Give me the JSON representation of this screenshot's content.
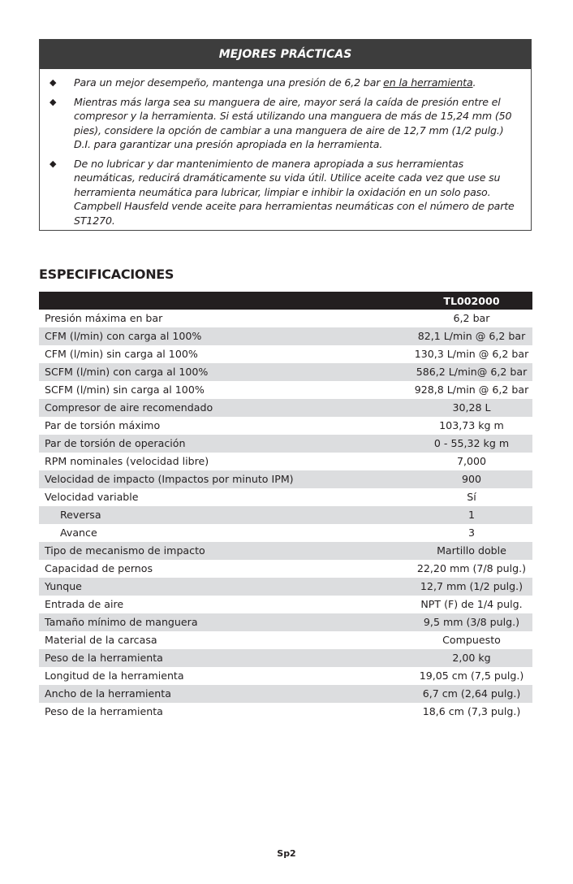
{
  "best_practices": {
    "title": "MEJORES PRÁCTICAS",
    "items": [
      {
        "text": "Para un mejor desempeño, mantenga una presión de 6,2 bar ",
        "underlined": "en la herramienta",
        "after": "."
      },
      {
        "text": "Mientras más larga sea su manguera de aire, mayor será la caída de presión entre el compresor y la herramienta. Si está utilizando una manguera de más de 15,24 mm (50 pies), considere la opción de cambiar a una manguera de aire de 12,7 mm (1/2 pulg.) D.I. para garantizar una presión apropiada en la herramienta."
      },
      {
        "text": "De no lubricar y dar mantenimiento de manera apropiada a sus herramientas neumáticas, reducirá dramáticamente su vida útil. Utilice aceite cada vez que use su herramienta neumática para lubricar, limpiar e inhibir la oxidación en un solo paso. Campbell Hausfeld vende aceite para herramientas neumáticas con el número de parte ST1270."
      }
    ],
    "bullet_icon": "diamond-bullet"
  },
  "specs": {
    "title": "ESPECIFICACIONES",
    "model": "TL002000",
    "rows": [
      {
        "label": "Presión máxima en bar",
        "value": "6,2 bar"
      },
      {
        "label": "CFM (l/min) con carga al 100%",
        "value": "82,1 L/min @ 6,2 bar"
      },
      {
        "label": "CFM (l/min) sin carga al 100%",
        "value": "130,3 L/min @ 6,2 bar"
      },
      {
        "label": "SCFM (l/min) con carga al 100%",
        "value": "586,2 L/min@ 6,2 bar"
      },
      {
        "label": "SCFM (l/min) sin carga al 100%",
        "value": "928,8 L/min @ 6,2 bar"
      },
      {
        "label": "Compresor de aire recomendado",
        "value": "30,28 L"
      },
      {
        "label": "Par de torsión máximo",
        "value": "103,73 kg m"
      },
      {
        "label": "Par de torsión de operación",
        "value": "0 - 55,32 kg m"
      },
      {
        "label": "RPM nominales (velocidad libre)",
        "value": "7,000"
      },
      {
        "label": "Velocidad de impacto (Impactos por minuto IPM)",
        "value": "900"
      },
      {
        "label": "Velocidad variable",
        "value": "Sí"
      },
      {
        "label": "Reversa",
        "value": "1",
        "indent": true
      },
      {
        "label": "Avance",
        "value": "3",
        "indent": true
      },
      {
        "label": "Tipo de mecanismo de impacto",
        "value": "Martillo doble"
      },
      {
        "label": "Capacidad de pernos",
        "value": "22,20 mm (7/8 pulg.)"
      },
      {
        "label": "Yunque",
        "value": "12,7 mm (1/2 pulg.)"
      },
      {
        "label": "Entrada de aire",
        "value": "NPT (F) de 1/4 pulg."
      },
      {
        "label": "Tamaño mínimo de manguera",
        "value": "9,5 mm (3/8 pulg.)"
      },
      {
        "label": "Material de la carcasa",
        "value": "Compuesto"
      },
      {
        "label": "Peso de la herramienta",
        "value": "2,00 kg"
      },
      {
        "label": "Longitud de la herramienta",
        "value": "19,05 cm (7,5 pulg.)"
      },
      {
        "label": "Ancho de la herramienta",
        "value": "6,7 cm (2,64 pulg.)"
      },
      {
        "label": "Peso de la herramienta",
        "value": "18,6 cm (7,3 pulg.)"
      }
    ],
    "colors": {
      "header": "#231f20",
      "stripe": "#dcdddf"
    }
  },
  "footer": {
    "page": "Sp2"
  }
}
